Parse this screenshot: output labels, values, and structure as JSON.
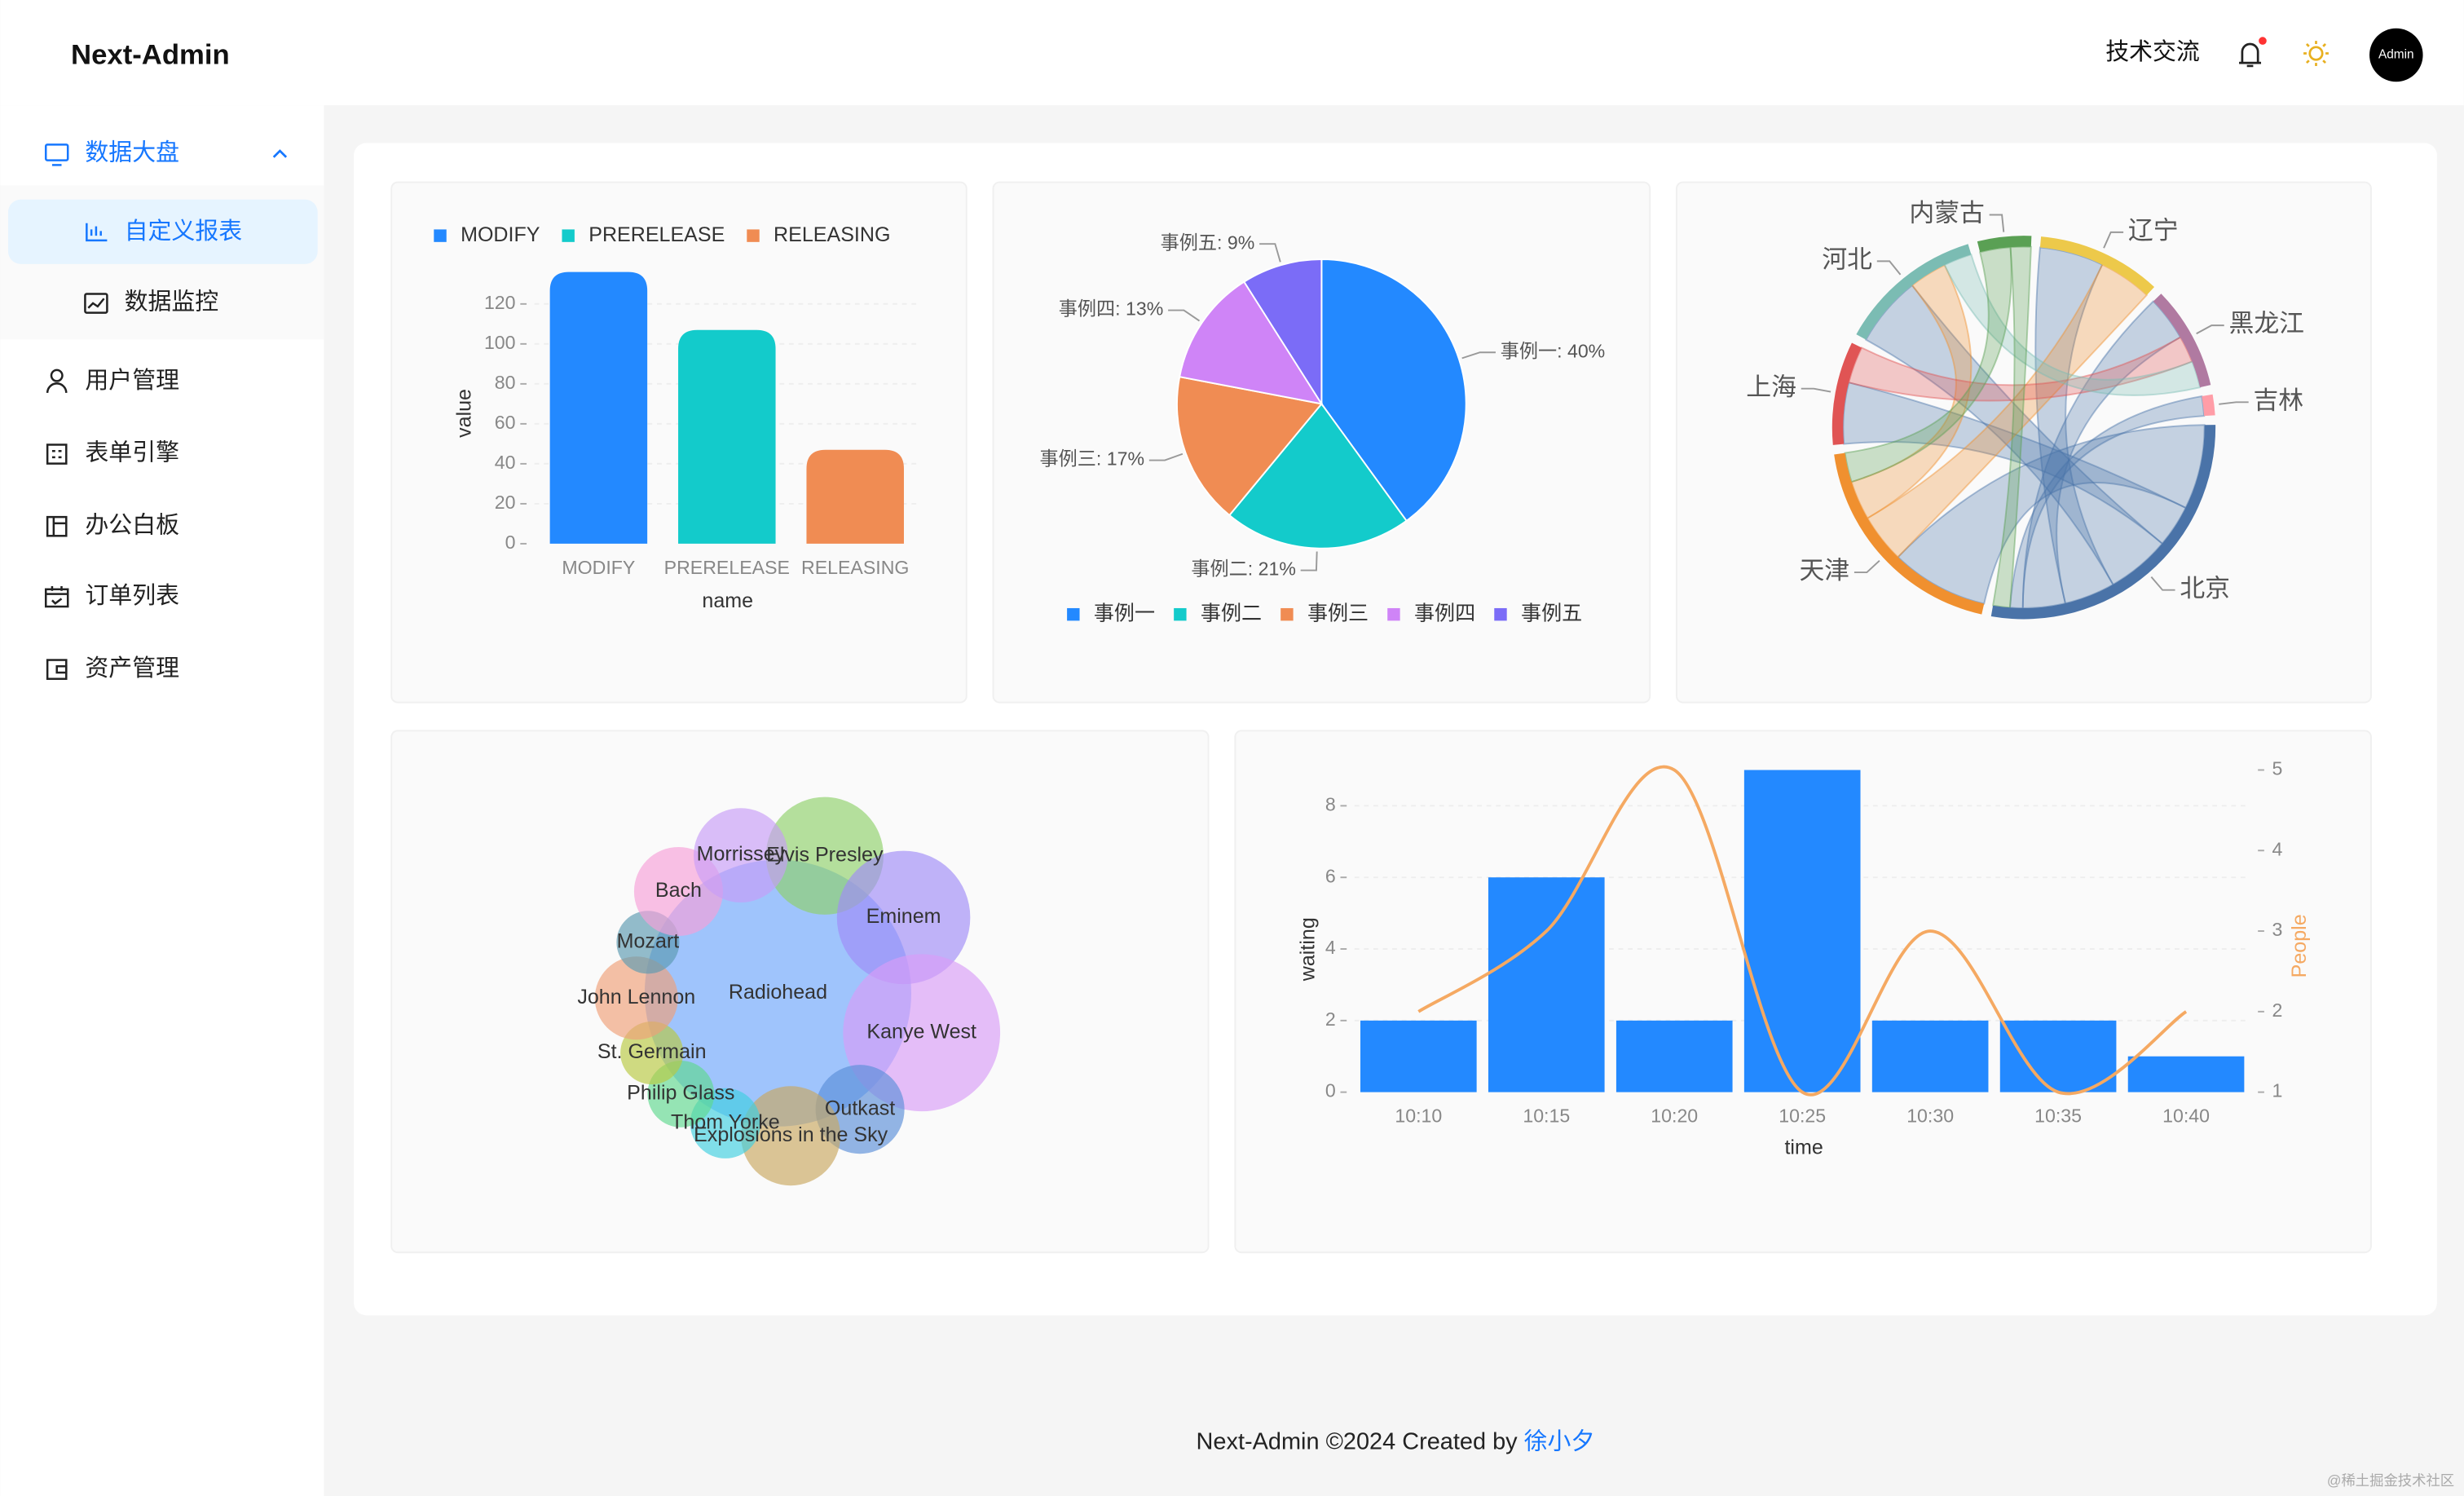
{
  "header": {
    "logo": "Next-Admin",
    "link": "技术交流",
    "avatar": "Admin"
  },
  "sidebar": {
    "groups": [
      {
        "label": "数据大盘",
        "items": [
          "自定义报表",
          "数据监控"
        ]
      }
    ],
    "items": [
      "用户管理",
      "表单引擎",
      "办公白板",
      "订单列表",
      "资产管理"
    ]
  },
  "footer": {
    "text": "Next-Admin ©2024 Created by",
    "author": "徐小夕"
  },
  "watermark": "@稀土掘金技术社区",
  "chart_data": [
    {
      "type": "bar",
      "categories": [
        "MODIFY",
        "PRERELEASE",
        "RELEASING"
      ],
      "values": [
        136,
        107,
        47
      ],
      "colors": [
        "#2389ff",
        "#13cbcb",
        "#f08c53"
      ],
      "ylim": [
        0,
        140
      ],
      "yticks": [
        0,
        20,
        40,
        60,
        80,
        100,
        120
      ],
      "x_label": "name",
      "y_label": "value",
      "grid": true,
      "legend": "top-left"
    },
    {
      "type": "pie",
      "categories": [
        "事例一",
        "事例二",
        "事例三",
        "事例四",
        "事例五"
      ],
      "values": [
        40,
        21,
        17,
        13,
        9
      ],
      "value_labels": [
        "事例一: 40%",
        "事例二: 21%",
        "事例三: 17%",
        "事例四: 13%",
        "事例五: 9%"
      ],
      "colors": [
        "#2389ff",
        "#13cbcb",
        "#f08c53",
        "#cf84f7",
        "#7b6cf7"
      ],
      "legend": "bottom"
    },
    {
      "type": "chord",
      "nodes": [
        {
          "name": "辽宁",
          "value": 30,
          "color": "#edc94a"
        },
        {
          "name": "黑龙江",
          "value": 25,
          "color": "#b07aa1"
        },
        {
          "name": "吉林",
          "value": 5,
          "color": "#ff9da7"
        },
        {
          "name": "北京",
          "value": 80,
          "color": "#4a73a8"
        },
        {
          "name": "天津",
          "value": 55,
          "color": "#f0902f"
        },
        {
          "name": "上海",
          "value": 25,
          "color": "#e05454"
        },
        {
          "name": "河北",
          "value": 35,
          "color": "#7bbcb3"
        },
        {
          "name": "内蒙古",
          "value": 13,
          "color": "#5aa054"
        }
      ],
      "links": [
        {
          "source": 3,
          "target": 4,
          "value": 20
        },
        {
          "source": 3,
          "target": 5,
          "value": 10
        },
        {
          "source": 3,
          "target": 6,
          "value": 15
        },
        {
          "source": 3,
          "target": 0,
          "value": 12
        },
        {
          "source": 3,
          "target": 1,
          "value": 10
        },
        {
          "source": 3,
          "target": 2,
          "value": 3
        },
        {
          "source": 4,
          "target": 0,
          "value": 10
        },
        {
          "source": 4,
          "target": 6,
          "value": 8
        },
        {
          "source": 5,
          "target": 1,
          "value": 6
        },
        {
          "source": 6,
          "target": 1,
          "value": 6
        },
        {
          "source": 7,
          "target": 4,
          "value": 6
        },
        {
          "source": 7,
          "target": 3,
          "value": 4
        }
      ]
    },
    {
      "type": "bubble",
      "categories": [
        "Radiohead",
        "Elvis Presley",
        "Eminem",
        "Kanye West",
        "Outkast",
        "Explosions in the Sky",
        "Thom Yorke",
        "Philip Glass",
        "St. Germain",
        "John Lennon",
        "Mozart",
        "Bach",
        "Morrissey"
      ],
      "values": [
        72,
        14,
        18,
        25,
        8,
        10,
        5,
        4.5,
        4,
        7,
        4,
        8,
        9
      ],
      "colors": [
        "#6ea8fe",
        "#8fd16a",
        "#9f8cf8",
        "#d99cf8",
        "#5b8fd8",
        "#c9a860",
        "#3fd0e0",
        "#5fd88f",
        "#b8c940",
        "#f0a078",
        "#5a9ab0",
        "#f8a0d8",
        "#c89cf8"
      ]
    },
    {
      "type": "combo",
      "categories": [
        "10:10",
        "10:15",
        "10:20",
        "10:25",
        "10:30",
        "10:35",
        "10:40"
      ],
      "series": [
        {
          "type": "bar",
          "color": "#2389ff",
          "values": [
            2,
            6,
            2,
            9,
            2,
            2,
            1
          ]
        },
        {
          "type": "line",
          "color": "#f5a962",
          "axis": "y2",
          "values": [
            2,
            3,
            5,
            1,
            3,
            1,
            2
          ]
        }
      ],
      "ylim": [
        0,
        9
      ],
      "yticks": [
        0,
        2,
        4,
        6,
        8
      ],
      "y2lim": [
        1,
        5
      ],
      "y2ticks": [
        1,
        2,
        3,
        4,
        5
      ],
      "x_label": "time",
      "y_label": "waiting",
      "y2_label": "People",
      "grid": true
    }
  ]
}
